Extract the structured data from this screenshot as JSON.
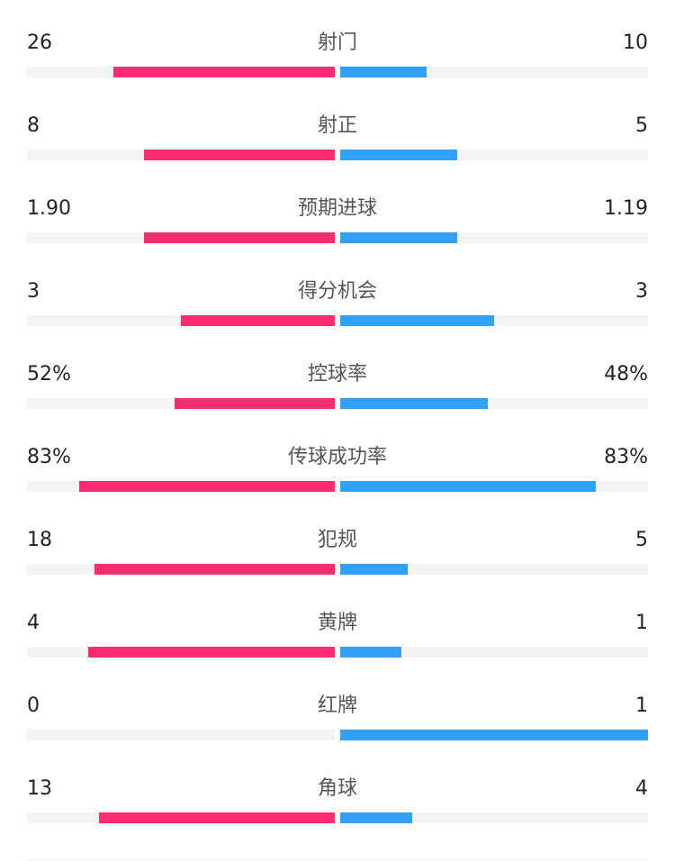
{
  "colors": {
    "home": "#fe2a72",
    "away": "#33a0f8",
    "track": "#f3f3f3"
  },
  "chart_data": {
    "type": "bar",
    "orientation": "diverging-horizontal",
    "stats": [
      {
        "label": "射门",
        "home": "26",
        "away": "10",
        "home_fill": 0.72,
        "away_fill": 0.28
      },
      {
        "label": "射正",
        "home": "8",
        "away": "5",
        "home_fill": 0.62,
        "away_fill": 0.38
      },
      {
        "label": "预期进球",
        "home": "1.90",
        "away": "1.19",
        "home_fill": 0.62,
        "away_fill": 0.38
      },
      {
        "label": "得分机会",
        "home": "3",
        "away": "3",
        "home_fill": 0.5,
        "away_fill": 0.5
      },
      {
        "label": "控球率",
        "home": "52%",
        "away": "48%",
        "home_fill": 0.52,
        "away_fill": 0.48
      },
      {
        "label": "传球成功率",
        "home": "83%",
        "away": "83%",
        "home_fill": 0.83,
        "away_fill": 0.83
      },
      {
        "label": "犯规",
        "home": "18",
        "away": "5",
        "home_fill": 0.78,
        "away_fill": 0.22
      },
      {
        "label": "黄牌",
        "home": "4",
        "away": "1",
        "home_fill": 0.8,
        "away_fill": 0.2
      },
      {
        "label": "红牌",
        "home": "0",
        "away": "1",
        "home_fill": 0,
        "away_fill": 1
      },
      {
        "label": "角球",
        "home": "13",
        "away": "4",
        "home_fill": 0.765,
        "away_fill": 0.235
      }
    ]
  }
}
